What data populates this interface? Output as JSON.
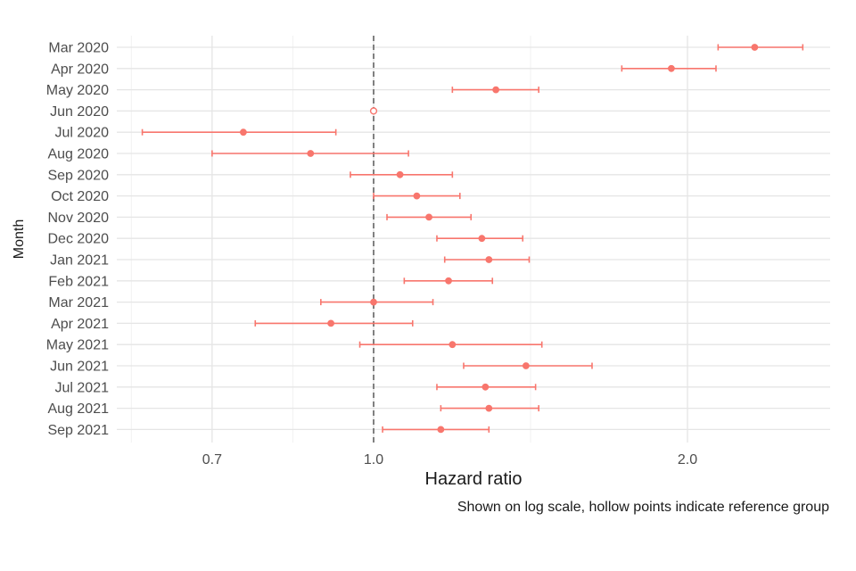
{
  "chart_data": {
    "type": "scatter",
    "subtype": "forest-plot",
    "xlabel": "Hazard ratio",
    "ylabel": "Month",
    "caption": "Shown on log scale, hollow points indicate reference group",
    "x_scale": "log",
    "xlim": [
      0.55,
      2.7
    ],
    "x_ticks": [
      0.7,
      1.0,
      2.0
    ],
    "x_tick_labels": [
      "0.7",
      "1.0",
      "2.0"
    ],
    "reference_line": 1.0,
    "grid": true,
    "colors": {
      "point": "#f8766d",
      "reference_line": "#737373",
      "grid_major": "#e5e5e5",
      "grid_minor": "#f2f2f2",
      "text": "#4d4d4d"
    },
    "rows": [
      {
        "label": "Mar 2020",
        "hr": 2.32,
        "low": 2.14,
        "high": 2.58,
        "reference": false
      },
      {
        "label": "Apr 2020",
        "hr": 1.93,
        "low": 1.73,
        "high": 2.13,
        "reference": false
      },
      {
        "label": "May 2020",
        "hr": 1.31,
        "low": 1.19,
        "high": 1.44,
        "reference": false
      },
      {
        "label": "Jun 2020",
        "hr": 1.0,
        "low": 1.0,
        "high": 1.0,
        "reference": true
      },
      {
        "label": "Jul 2020",
        "hr": 0.75,
        "low": 0.6,
        "high": 0.92,
        "reference": false
      },
      {
        "label": "Aug 2020",
        "hr": 0.87,
        "low": 0.7,
        "high": 1.08,
        "reference": false
      },
      {
        "label": "Sep 2020",
        "hr": 1.06,
        "low": 0.95,
        "high": 1.19,
        "reference": false
      },
      {
        "label": "Oct 2020",
        "hr": 1.1,
        "low": 1.0,
        "high": 1.21,
        "reference": false
      },
      {
        "label": "Nov 2020",
        "hr": 1.13,
        "low": 1.03,
        "high": 1.24,
        "reference": false
      },
      {
        "label": "Dec 2020",
        "hr": 1.27,
        "low": 1.15,
        "high": 1.39,
        "reference": false
      },
      {
        "label": "Jan 2021",
        "hr": 1.29,
        "low": 1.17,
        "high": 1.41,
        "reference": false
      },
      {
        "label": "Feb 2021",
        "hr": 1.18,
        "low": 1.07,
        "high": 1.3,
        "reference": false
      },
      {
        "label": "Mar 2021",
        "hr": 1.0,
        "low": 0.89,
        "high": 1.14,
        "reference": false
      },
      {
        "label": "Apr 2021",
        "hr": 0.91,
        "low": 0.77,
        "high": 1.09,
        "reference": false
      },
      {
        "label": "May 2021",
        "hr": 1.19,
        "low": 0.97,
        "high": 1.45,
        "reference": false
      },
      {
        "label": "Jun 2021",
        "hr": 1.4,
        "low": 1.22,
        "high": 1.62,
        "reference": false
      },
      {
        "label": "Jul 2021",
        "hr": 1.28,
        "low": 1.15,
        "high": 1.43,
        "reference": false
      },
      {
        "label": "Aug 2021",
        "hr": 1.29,
        "low": 1.16,
        "high": 1.44,
        "reference": false
      },
      {
        "label": "Sep 2021",
        "hr": 1.16,
        "low": 1.02,
        "high": 1.29,
        "reference": false
      }
    ]
  }
}
